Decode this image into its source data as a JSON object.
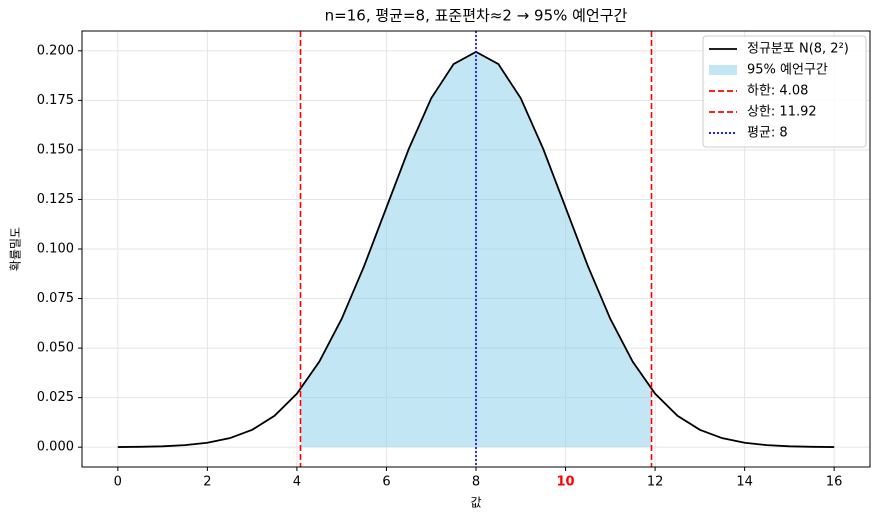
{
  "chart_data": {
    "type": "line",
    "title": "n=16, 평균=8, 표준편차≈2 → 95% 예언구간",
    "x_label": "값",
    "y_label": "확률밀도",
    "x": [
      0,
      0.5,
      1,
      1.5,
      2,
      2.5,
      3,
      3.5,
      4,
      4.5,
      5,
      5.5,
      6,
      6.5,
      7,
      7.5,
      8,
      8.5,
      9,
      9.5,
      10,
      10.5,
      11,
      11.5,
      12,
      12.5,
      13,
      13.5,
      14,
      14.5,
      15,
      15.5,
      16
    ],
    "series": [
      {
        "name": "정규분포 N(8, 2²)",
        "color": "#000000",
        "values": [
          7e-05,
          0.00018,
          0.00044,
          0.00102,
          0.00222,
          0.00455,
          0.00876,
          0.01587,
          0.027,
          0.04315,
          0.06476,
          0.09132,
          0.12099,
          0.15057,
          0.17603,
          0.19333,
          0.19947,
          0.19333,
          0.17603,
          0.15057,
          0.12099,
          0.09132,
          0.06476,
          0.04315,
          0.027,
          0.01587,
          0.00876,
          0.00455,
          0.00222,
          0.00102,
          0.00044,
          0.00018,
          7e-05
        ]
      }
    ],
    "area": {
      "name": "95% 예언구간",
      "color": "#87ceeb",
      "opacity": 0.5
    },
    "vlines": [
      {
        "name": "하한: 4.08",
        "value": 4.08,
        "color": "#ff0000",
        "dash": "6,3"
      },
      {
        "name": "상한: 11.92",
        "value": 11.92,
        "color": "#ff0000",
        "dash": "6,3"
      },
      {
        "name": "평균: 8",
        "value": 8,
        "color": "#0000ff",
        "dash": "2,2"
      }
    ],
    "xlim": [
      -0.8,
      16.8
    ],
    "xticks": [
      0,
      2,
      4,
      6,
      8,
      10,
      12,
      14,
      16
    ],
    "ylim": [
      -0.01,
      0.21
    ],
    "yticks": [
      {
        "value": 0,
        "label": "0.000"
      },
      {
        "value": 0.025,
        "label": "0.025"
      },
      {
        "value": 0.05,
        "label": "0.050"
      },
      {
        "value": 0.075,
        "label": "0.075"
      },
      {
        "value": 0.1,
        "label": "0.100"
      },
      {
        "value": 0.125,
        "label": "0.125"
      },
      {
        "value": 0.15,
        "label": "0.150"
      },
      {
        "value": 0.175,
        "label": "0.175"
      },
      {
        "value": 0.2,
        "label": "0.200"
      }
    ],
    "highlight_xtick": 10,
    "highlight_color": "#ff0000",
    "grid": true,
    "legend": "upper right"
  }
}
